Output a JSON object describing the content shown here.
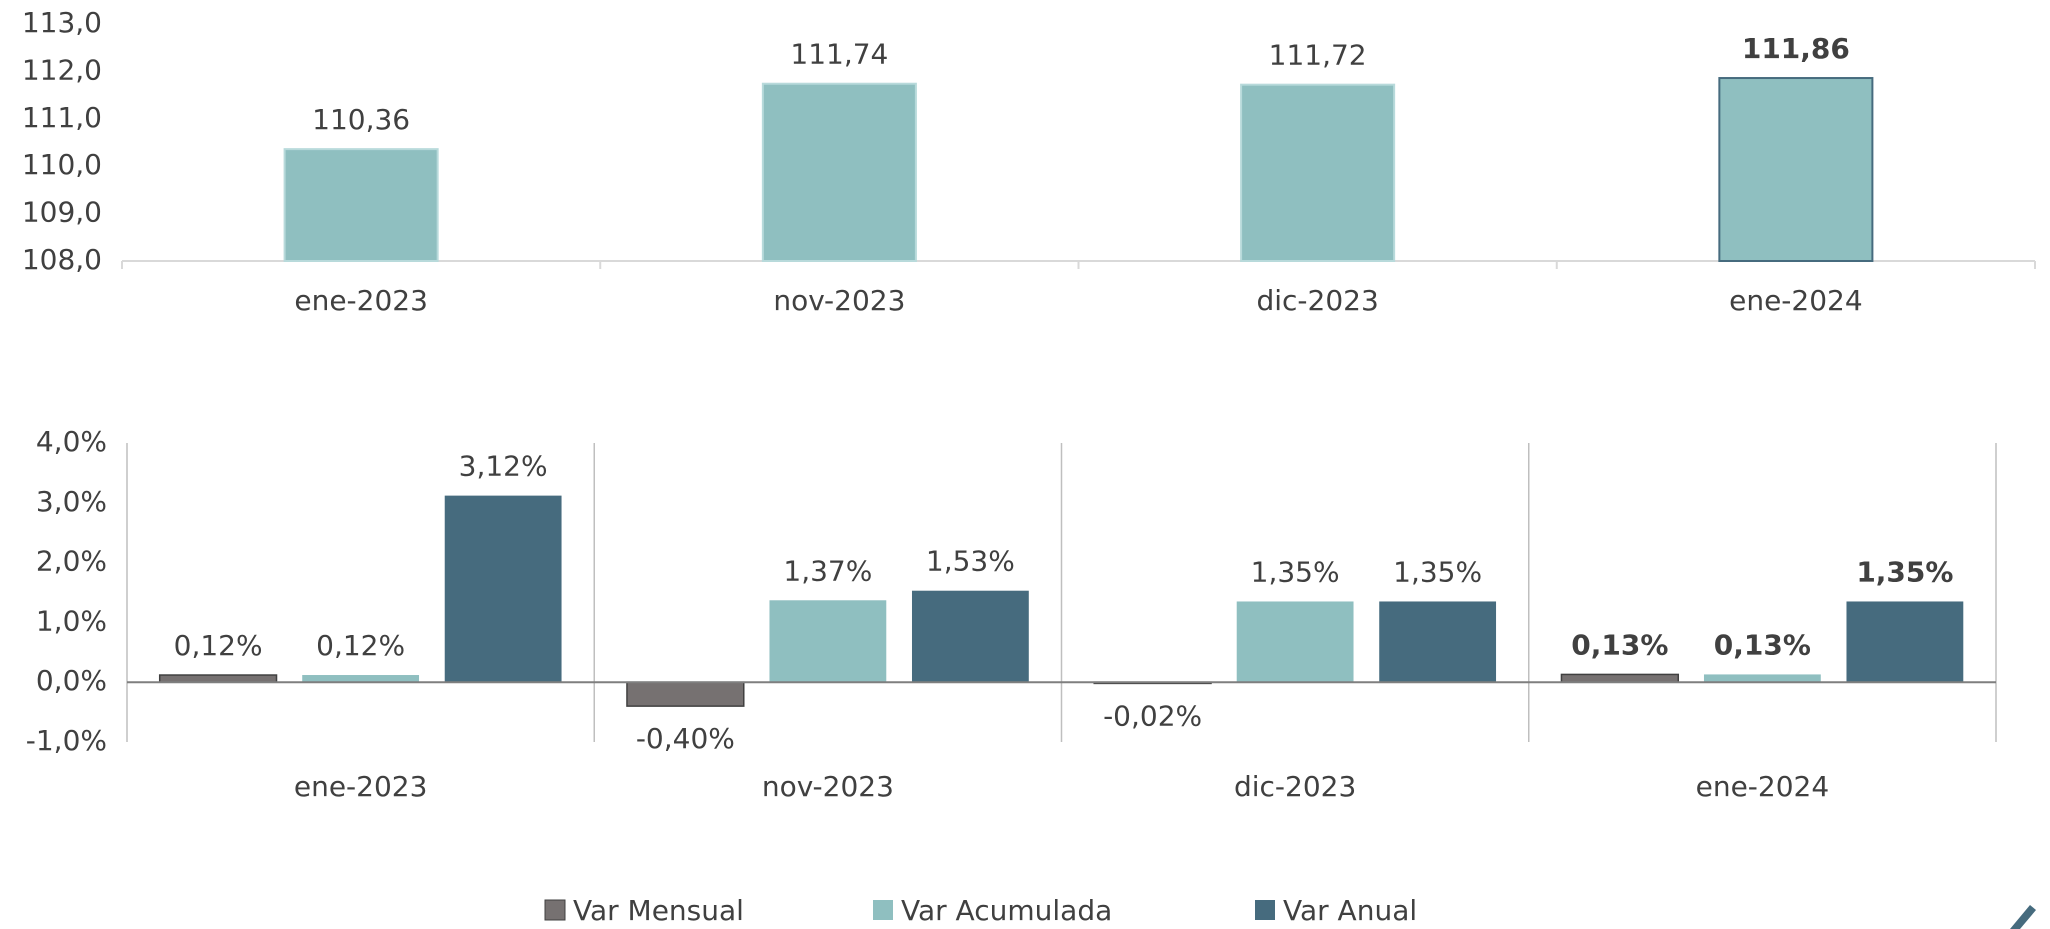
{
  "chart_data": [
    {
      "type": "bar",
      "categories": [
        "ene-2023",
        "nov-2023",
        "dic-2023",
        "ene-2024"
      ],
      "values": [
        110.36,
        111.74,
        111.72,
        111.86
      ],
      "value_labels": [
        "110,36",
        "111,74",
        "111,72",
        "111,86"
      ],
      "color": "#8fbfc0",
      "ylim": [
        108,
        113
      ],
      "yticks": [
        {
          "value": 108,
          "label": "108,0"
        },
        {
          "value": 109,
          "label": "109,0"
        },
        {
          "value": 110,
          "label": "110,0"
        },
        {
          "value": 111,
          "label": "111,0"
        },
        {
          "value": 112,
          "label": "112,0"
        },
        {
          "value": 113,
          "label": "113,0"
        }
      ]
    },
    {
      "type": "grouped_bar",
      "categories": [
        "ene-2023",
        "nov-2023",
        "dic-2023",
        "ene-2024"
      ],
      "series": [
        {
          "name": "Var Mensual",
          "color": "#767171",
          "values": [
            0.12,
            -0.4,
            -0.02,
            0.13
          ],
          "value_labels": [
            "0,12%",
            "-0,40%",
            "-0,02%",
            "0,13%"
          ]
        },
        {
          "name": "Var Acumulada",
          "color": "#8fbfc0",
          "values": [
            0.12,
            1.37,
            1.35,
            0.13
          ],
          "value_labels": [
            "0,12%",
            "1,37%",
            "1,35%",
            "0,13%"
          ]
        },
        {
          "name": "Var Anual",
          "color": "#466b7e",
          "values": [
            3.12,
            1.53,
            1.35,
            1.35
          ],
          "value_labels": [
            "3,12%",
            "1,53%",
            "1,35%",
            "1,35%"
          ]
        }
      ],
      "ylim": [
        -1,
        4
      ],
      "yticks": [
        {
          "value": -1,
          "label": "-1,0%"
        },
        {
          "value": 0,
          "label": "0,0%"
        },
        {
          "value": 1,
          "label": "1,0%"
        },
        {
          "value": 2,
          "label": "2,0%"
        },
        {
          "value": 3,
          "label": "3,0%"
        },
        {
          "value": 4,
          "label": "4,0%"
        }
      ],
      "legend": "bottom"
    }
  ]
}
